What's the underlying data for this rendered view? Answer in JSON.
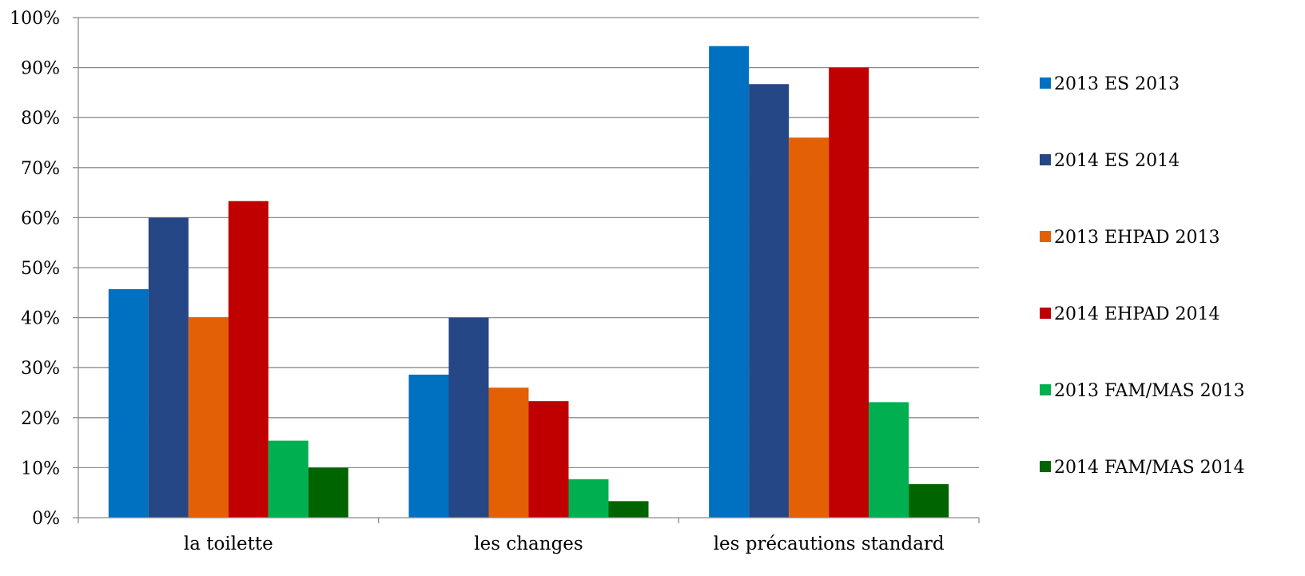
{
  "chart_data": {
    "type": "bar",
    "categories": [
      "la toilette",
      "les changes",
      "les précautions standard"
    ],
    "series": [
      {
        "name": "2013 ES 2013",
        "color": "#0070C0",
        "values": [
          45.7,
          28.6,
          94.3
        ]
      },
      {
        "name": "2014 ES 2014",
        "color": "#254785",
        "values": [
          60.0,
          40.0,
          86.7
        ]
      },
      {
        "name": "2013 EHPAD 2013",
        "color": "#E36005",
        "values": [
          40.0,
          26.0,
          76.0
        ]
      },
      {
        "name": "2014 EHPAD 2014",
        "color": "#C00000",
        "values": [
          63.3,
          23.3,
          90.0
        ]
      },
      {
        "name": "2013 FAM/MAS 2013",
        "color": "#00B050",
        "values": [
          15.4,
          7.7,
          23.1
        ]
      },
      {
        "name": "2014 FAM/MAS 2014",
        "color": "#006400",
        "values": [
          10.0,
          3.3,
          6.7
        ]
      }
    ],
    "y_ticks": [
      "0%",
      "10%",
      "20%",
      "30%",
      "40%",
      "50%",
      "60%",
      "70%",
      "80%",
      "90%",
      "100%"
    ],
    "ylim": [
      0,
      100
    ],
    "grid": true,
    "legend_position": "right"
  }
}
